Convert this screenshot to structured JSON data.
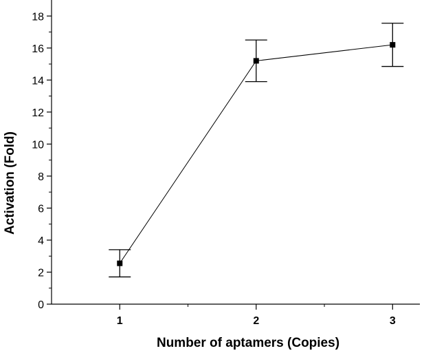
{
  "chart_data": {
    "type": "line",
    "title": "",
    "xlabel": "Number of aptamers (Copies)",
    "ylabel": "Activation (Fold)",
    "x": [
      1,
      2,
      3
    ],
    "y": [
      2.55,
      15.2,
      16.2
    ],
    "error": [
      0.85,
      1.3,
      1.35
    ],
    "xlim": [
      0.5,
      3.2
    ],
    "ylim": [
      0,
      19
    ],
    "xticks": [
      1,
      2,
      3
    ],
    "xtick_labels": [
      "1",
      "2",
      "3"
    ],
    "yticks": [
      0,
      2,
      4,
      6,
      8,
      10,
      12,
      14,
      16,
      18
    ],
    "ytick_labels": [
      "0",
      "2",
      "4",
      "6",
      "8",
      "10",
      "12",
      "14",
      "16",
      "18"
    ],
    "grid": false,
    "legend": "none",
    "colors": {
      "line": "#000000",
      "marker": "#000000"
    }
  }
}
